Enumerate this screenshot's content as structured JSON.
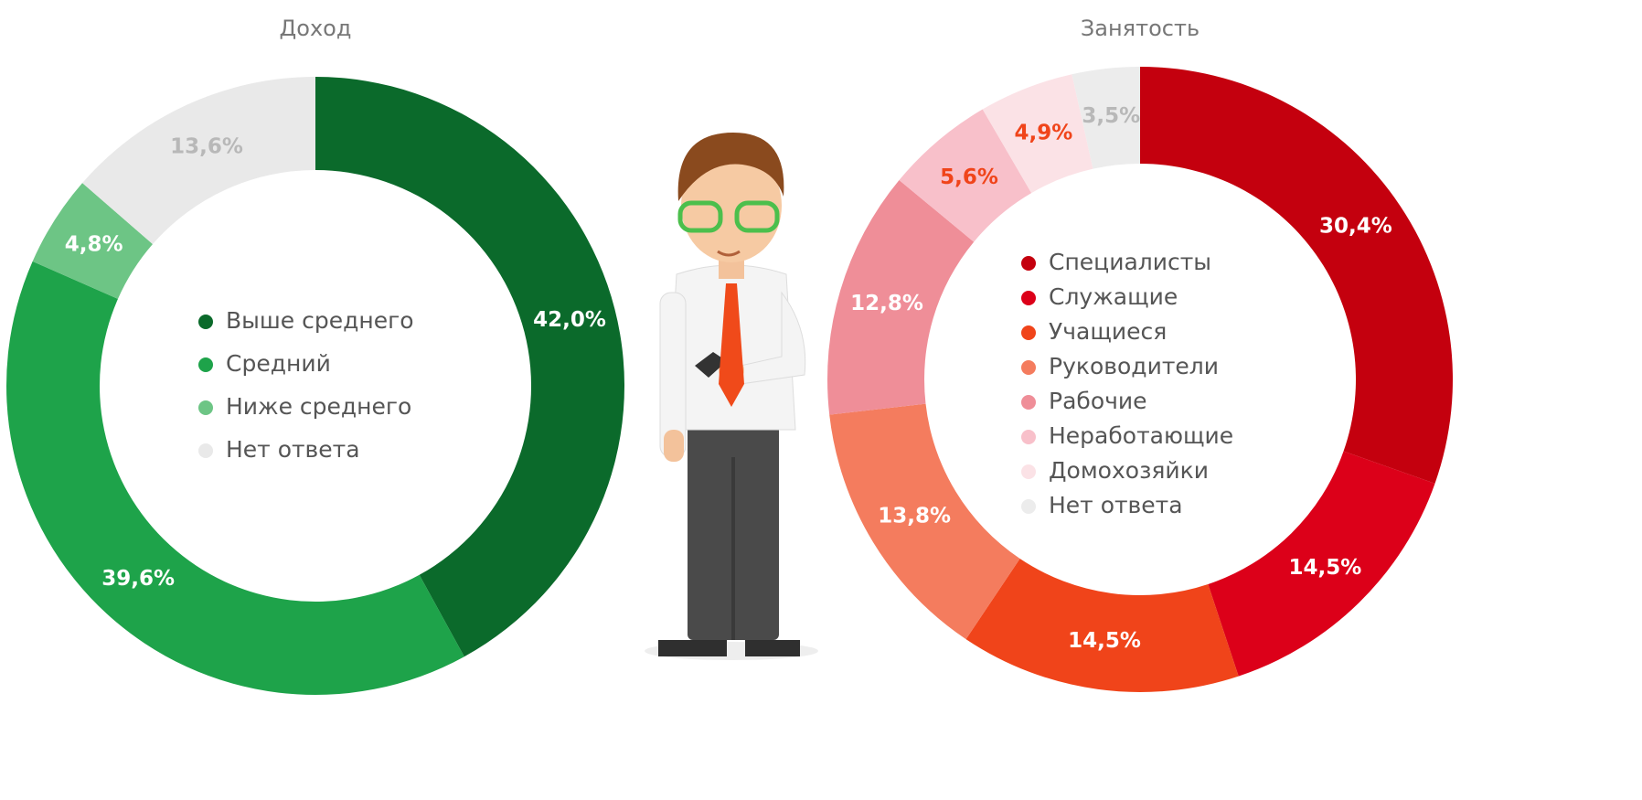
{
  "chart_data": [
    {
      "type": "donut",
      "title": "Доход",
      "categories": [
        "Выше среднего",
        "Средний",
        "Ниже среднего",
        "Нет ответа"
      ],
      "values": [
        42.0,
        39.6,
        4.8,
        13.6
      ],
      "value_labels": [
        "42,0%",
        "39,6%",
        "4,8%",
        "13,6%"
      ],
      "colors": [
        "#0b6a2b",
        "#1ea34a",
        "#6dc585",
        "#e9e9e9"
      ],
      "label_colors": [
        "#ffffff",
        "#ffffff",
        "#ffffff",
        "#b8b8b8"
      ]
    },
    {
      "type": "donut",
      "title": "Занятость",
      "categories": [
        "Специалисты",
        "Служащие",
        "Учащиеся",
        "Руководители",
        "Рабочие",
        "Неработающие",
        "Домохозяйки",
        "Нет ответа"
      ],
      "values": [
        30.4,
        14.5,
        14.5,
        13.8,
        12.8,
        5.6,
        4.9,
        3.5
      ],
      "value_labels": [
        "30,4%",
        "14,5%",
        "14,5%",
        "13,8%",
        "12,8%",
        "5,6%",
        "4,9%",
        "3,5%"
      ],
      "colors": [
        "#c4000e",
        "#dc0019",
        "#f0441a",
        "#f47c5e",
        "#ef8e98",
        "#f8c0ca",
        "#fbe2e6",
        "#ececec"
      ],
      "label_colors": [
        "#ffffff",
        "#ffffff",
        "#ffffff",
        "#ffffff",
        "#ffffff",
        "#f0441a",
        "#f0441a",
        "#b8b8b8"
      ]
    }
  ]
}
